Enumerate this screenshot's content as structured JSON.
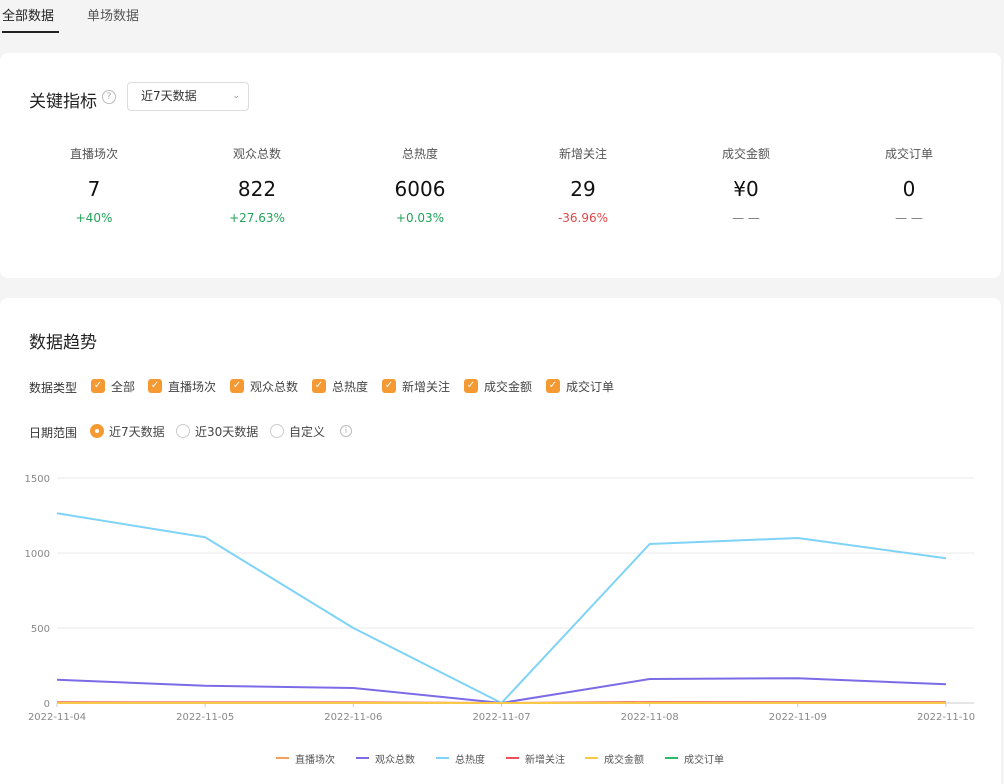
{
  "tabs": [
    {
      "label": "全部数据",
      "active": true
    },
    {
      "label": "单场数据",
      "active": false
    }
  ],
  "key_metrics": {
    "title": "关键指标",
    "range_select": "近7天数据",
    "items": [
      {
        "label": "直播场次",
        "value": "7",
        "change": "+40%",
        "trend": "up"
      },
      {
        "label": "观众总数",
        "value": "822",
        "change": "+27.63%",
        "trend": "up"
      },
      {
        "label": "总热度",
        "value": "6006",
        "change": "+0.03%",
        "trend": "up"
      },
      {
        "label": "新增关注",
        "value": "29",
        "change": "-36.96%",
        "trend": "down"
      },
      {
        "label": "成交金额",
        "value": "¥0",
        "change": "— —",
        "trend": "flat"
      },
      {
        "label": "成交订单",
        "value": "0",
        "change": "— —",
        "trend": "flat"
      }
    ]
  },
  "trend": {
    "title": "数据趋势",
    "type_label": "数据类型",
    "types": [
      "全部",
      "直播场次",
      "观众总数",
      "总热度",
      "新增关注",
      "成交金额",
      "成交订单"
    ],
    "date_label": "日期范围",
    "date_options": [
      {
        "label": "近7天数据",
        "selected": true
      },
      {
        "label": "近30天数据",
        "selected": false
      },
      {
        "label": "自定义",
        "selected": false
      }
    ]
  },
  "chart_data": {
    "type": "line",
    "categories": [
      "2022-11-04",
      "2022-11-05",
      "2022-11-06",
      "2022-11-07",
      "2022-11-08",
      "2022-11-09",
      "2022-11-10"
    ],
    "ylim": [
      0,
      1500
    ],
    "yticks": [
      "0",
      "500",
      "1000",
      "1500"
    ],
    "grid": true,
    "legend_position": "bottom",
    "series": [
      {
        "name": "直播场次",
        "color": "#f5a05a",
        "values": [
          1,
          1,
          1,
          0,
          2,
          1,
          1
        ]
      },
      {
        "name": "观众总数",
        "color": "#7b6be6",
        "values": [
          155,
          115,
          100,
          0,
          160,
          165,
          125
        ]
      },
      {
        "name": "总热度",
        "color": "#7fd3f7",
        "values": [
          1265,
          1105,
          500,
          0,
          1060,
          1100,
          965
        ]
      },
      {
        "name": "新增关注",
        "color": "#ef4f5a",
        "values": [
          5,
          4,
          4,
          0,
          6,
          5,
          5
        ]
      },
      {
        "name": "成交金额",
        "color": "#f7c948",
        "values": [
          0,
          0,
          0,
          0,
          0,
          0,
          0
        ]
      },
      {
        "name": "成交订单",
        "color": "#2dbb6a",
        "values": [
          0,
          0,
          0,
          0,
          0,
          0,
          0
        ]
      }
    ]
  }
}
